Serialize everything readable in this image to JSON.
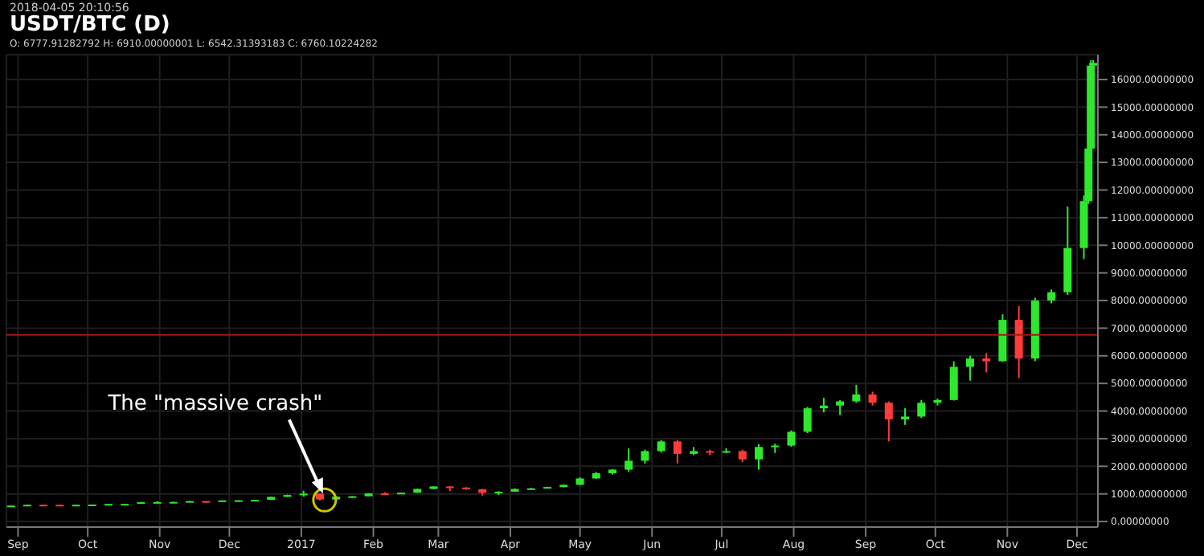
{
  "chart_data": {
    "type": "candlestick",
    "title": "USDT/BTC (D)",
    "subtitle": "O: 6777.91282792 H: 6910.00000001 L: 6542.31393183 C: 6760.10224282",
    "annotations": [
      "2018-04-05 20:10:56",
      {
        "text": "The \"massive crash\"",
        "x": "2017-01-11",
        "y": 780
      }
    ],
    "x": [
      "2016-08-29",
      "2016-09-05",
      "2016-09-12",
      "2016-09-19",
      "2016-09-26",
      "2016-10-03",
      "2016-10-10",
      "2016-10-17",
      "2016-10-24",
      "2016-10-31",
      "2016-11-07",
      "2016-11-14",
      "2016-11-21",
      "2016-11-28",
      "2016-12-05",
      "2016-12-12",
      "2016-12-19",
      "2016-12-26",
      "2017-01-02",
      "2017-01-09",
      "2017-01-16",
      "2017-01-23",
      "2017-01-30",
      "2017-02-06",
      "2017-02-13",
      "2017-02-20",
      "2017-02-27",
      "2017-03-06",
      "2017-03-13",
      "2017-03-20",
      "2017-03-27",
      "2017-04-03",
      "2017-04-10",
      "2017-04-17",
      "2017-04-24",
      "2017-05-01",
      "2017-05-08",
      "2017-05-15",
      "2017-05-22",
      "2017-05-29",
      "2017-06-05",
      "2017-06-12",
      "2017-06-19",
      "2017-06-26",
      "2017-07-03",
      "2017-07-10",
      "2017-07-17",
      "2017-07-24",
      "2017-07-31",
      "2017-08-07",
      "2017-08-14",
      "2017-08-21",
      "2017-08-28",
      "2017-09-04",
      "2017-09-11",
      "2017-09-18",
      "2017-09-25",
      "2017-10-02",
      "2017-10-09",
      "2017-10-16",
      "2017-10-23",
      "2017-10-30",
      "2017-11-06",
      "2017-11-13",
      "2017-11-20",
      "2017-11-27",
      "2017-12-04",
      "2017-12-06",
      "2017-12-07",
      "2017-12-08"
    ],
    "ohlc": [
      [
        574,
        580,
        565,
        578
      ],
      [
        578,
        612,
        575,
        608
      ],
      [
        608,
        612,
        600,
        606
      ],
      [
        606,
        610,
        593,
        600
      ],
      [
        600,
        610,
        598,
        608
      ],
      [
        608,
        618,
        605,
        615
      ],
      [
        615,
        640,
        612,
        638
      ],
      [
        638,
        645,
        628,
        640
      ],
      [
        640,
        705,
        638,
        700
      ],
      [
        700,
        740,
        690,
        705
      ],
      [
        705,
        720,
        700,
        710
      ],
      [
        710,
        750,
        705,
        740
      ],
      [
        740,
        745,
        728,
        735
      ],
      [
        735,
        770,
        730,
        765
      ],
      [
        765,
        772,
        755,
        770
      ],
      [
        770,
        790,
        765,
        785
      ],
      [
        785,
        900,
        780,
        895
      ],
      [
        895,
        975,
        890,
        960
      ],
      [
        960,
        1120,
        900,
        1010
      ],
      [
        1010,
        1020,
        760,
        800
      ],
      [
        800,
        920,
        790,
        900
      ],
      [
        900,
        925,
        880,
        915
      ],
      [
        915,
        1030,
        910,
        1020
      ],
      [
        1020,
        1060,
        960,
        1000
      ],
      [
        1000,
        1050,
        990,
        1045
      ],
      [
        1045,
        1190,
        1040,
        1180
      ],
      [
        1180,
        1280,
        1170,
        1270
      ],
      [
        1270,
        1280,
        1100,
        1230
      ],
      [
        1230,
        1245,
        1150,
        1170
      ],
      [
        1170,
        1180,
        940,
        1040
      ],
      [
        1040,
        1100,
        960,
        1080
      ],
      [
        1080,
        1200,
        1070,
        1180
      ],
      [
        1180,
        1220,
        1170,
        1200
      ],
      [
        1200,
        1260,
        1190,
        1250
      ],
      [
        1250,
        1340,
        1240,
        1330
      ],
      [
        1330,
        1600,
        1320,
        1560
      ],
      [
        1560,
        1800,
        1550,
        1750
      ],
      [
        1750,
        1900,
        1700,
        1880
      ],
      [
        1880,
        2650,
        1800,
        2200
      ],
      [
        2200,
        2600,
        2100,
        2550
      ],
      [
        2550,
        2950,
        2500,
        2900
      ],
      [
        2900,
        2950,
        2100,
        2450
      ],
      [
        2450,
        2700,
        2400,
        2550
      ],
      [
        2550,
        2600,
        2400,
        2500
      ],
      [
        2500,
        2650,
        2480,
        2550
      ],
      [
        2550,
        2600,
        2150,
        2250
      ],
      [
        2250,
        2800,
        1880,
        2700
      ],
      [
        2700,
        2820,
        2480,
        2750
      ],
      [
        2750,
        3300,
        2700,
        3250
      ],
      [
        3250,
        4150,
        3200,
        4100
      ],
      [
        4100,
        4480,
        3950,
        4200
      ],
      [
        4200,
        4400,
        3850,
        4350
      ],
      [
        4350,
        4950,
        4300,
        4600
      ],
      [
        4600,
        4700,
        4200,
        4300
      ],
      [
        4300,
        4350,
        2900,
        3700
      ],
      [
        3700,
        4100,
        3500,
        3800
      ],
      [
        3800,
        4400,
        3750,
        4300
      ],
      [
        4300,
        4450,
        4200,
        4400
      ],
      [
        4400,
        5800,
        4380,
        5600
      ],
      [
        5600,
        6000,
        5100,
        5900
      ],
      [
        5900,
        6100,
        5400,
        5800
      ],
      [
        5800,
        7500,
        5780,
        7300
      ],
      [
        7300,
        7800,
        5200,
        5900
      ],
      [
        5900,
        8100,
        5800,
        8000
      ],
      [
        8000,
        8400,
        7900,
        8300
      ],
      [
        8300,
        11400,
        8200,
        9900
      ],
      [
        9900,
        11800,
        9500,
        11600
      ],
      [
        11600,
        13900,
        11500,
        13500
      ],
      [
        13500,
        16700,
        13400,
        16500
      ],
      [
        16500,
        16700,
        16400,
        16600
      ]
    ],
    "colors": [
      "#2ee82e",
      "#2ee82e",
      "#ff3b3b",
      "#ff3b3b",
      "#2ee82e",
      "#2ee82e",
      "#2ee82e",
      "#2ee82e",
      "#2ee82e",
      "#2ee82e",
      "#2ee82e",
      "#2ee82e",
      "#ff3b3b",
      "#2ee82e",
      "#2ee82e",
      "#2ee82e",
      "#2ee82e",
      "#2ee82e",
      "#2ee82e",
      "#ff3b3b",
      "#2ee82e",
      "#2ee82e",
      "#2ee82e",
      "#ff3b3b",
      "#2ee82e",
      "#2ee82e",
      "#2ee82e",
      "#ff3b3b",
      "#ff3b3b",
      "#ff3b3b",
      "#2ee82e",
      "#2ee82e",
      "#2ee82e",
      "#2ee82e",
      "#2ee82e",
      "#2ee82e",
      "#2ee82e",
      "#2ee82e",
      "#2ee82e",
      "#2ee82e",
      "#2ee82e",
      "#ff3b3b",
      "#2ee82e",
      "#ff3b3b",
      "#2ee82e",
      "#ff3b3b",
      "#2ee82e",
      "#2ee82e",
      "#2ee82e",
      "#2ee82e",
      "#2ee82e",
      "#2ee82e",
      "#2ee82e",
      "#ff3b3b",
      "#ff3b3b",
      "#2ee82e",
      "#2ee82e",
      "#2ee82e",
      "#2ee82e",
      "#2ee82e",
      "#ff3b3b",
      "#2ee82e",
      "#ff3b3b",
      "#2ee82e",
      "#2ee82e",
      "#2ee82e",
      "#2ee82e",
      "#2ee82e",
      "#2ee82e",
      "#2ee82e"
    ],
    "xlim": [
      "2016-08-27",
      "2017-12-10"
    ],
    "xticks": [
      {
        "value": "2016-09-01",
        "label": "Sep"
      },
      {
        "value": "2016-10-01",
        "label": "Oct"
      },
      {
        "value": "2016-11-01",
        "label": "Nov"
      },
      {
        "value": "2016-12-01",
        "label": "Dec"
      },
      {
        "value": "2017-01-01",
        "label": "2017"
      },
      {
        "value": "2017-02-01",
        "label": "Feb"
      },
      {
        "value": "2017-03-01",
        "label": "Mar"
      },
      {
        "value": "2017-04-01",
        "label": "Apr"
      },
      {
        "value": "2017-05-01",
        "label": "May"
      },
      {
        "value": "2017-06-01",
        "label": "Jun"
      },
      {
        "value": "2017-07-01",
        "label": "Jul"
      },
      {
        "value": "2017-08-01",
        "label": "Aug"
      },
      {
        "value": "2017-09-01",
        "label": "Sep"
      },
      {
        "value": "2017-10-01",
        "label": "Oct"
      },
      {
        "value": "2017-11-01",
        "label": "Nov"
      },
      {
        "value": "2017-12-01",
        "label": "Dec"
      }
    ],
    "ylim": [
      -200,
      16900
    ],
    "yticks": [
      {
        "value": 0,
        "label": "0.00000000"
      },
      {
        "value": 1000,
        "label": "1000.00000000"
      },
      {
        "value": 2000,
        "label": "2000.00000000"
      },
      {
        "value": 3000,
        "label": "3000.00000000"
      },
      {
        "value": 4000,
        "label": "4000.00000000"
      },
      {
        "value": 5000,
        "label": "5000.00000000"
      },
      {
        "value": 6000,
        "label": "6000.00000000"
      },
      {
        "value": 7000,
        "label": "7000.00000000"
      },
      {
        "value": 8000,
        "label": "8000.00000000"
      },
      {
        "value": 9000,
        "label": "9000.00000000"
      },
      {
        "value": 10000,
        "label": "10000.00000000"
      },
      {
        "value": 11000,
        "label": "11000.00000000"
      },
      {
        "value": 12000,
        "label": "12000.00000000"
      },
      {
        "value": 13000,
        "label": "13000.00000000"
      },
      {
        "value": 14000,
        "label": "14000.00000000"
      },
      {
        "value": 15000,
        "label": "15000.00000000"
      },
      {
        "value": 16000,
        "label": "16000.00000000"
      }
    ],
    "ref_lines": [
      {
        "axis": "y",
        "value": 6760.10224282,
        "color": "#a01818"
      }
    ],
    "grid": true
  }
}
